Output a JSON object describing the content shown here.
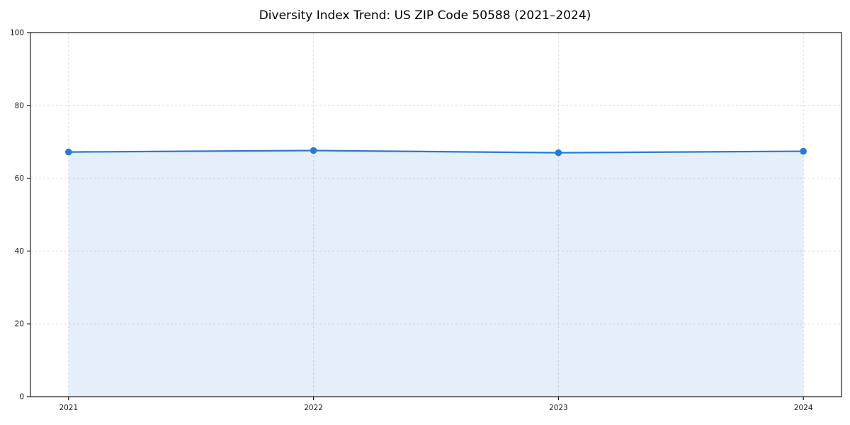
{
  "chart_data": {
    "type": "area",
    "title": "Diversity Index Trend: US ZIP Code 50588 (2021–2024)",
    "x": [
      2021,
      2022,
      2023,
      2024
    ],
    "x_tick_labels": [
      "2021",
      "2022",
      "2023",
      "2024"
    ],
    "series": [
      {
        "name": "Diversity Index",
        "values": [
          67.2,
          67.6,
          67.0,
          67.4
        ]
      }
    ],
    "xlabel": "",
    "ylabel": "",
    "ylim": [
      0,
      100
    ],
    "yticks": [
      0,
      20,
      40,
      60,
      80,
      100
    ],
    "grid": true,
    "grid_style": "dashed",
    "legend": false,
    "colors": {
      "line": "#2979d9",
      "marker": "#2979d9",
      "fill": "rgba(41, 121, 217, 0.12)",
      "grid": "#dcdcdc",
      "axis_border": "#1a1a1a",
      "tick_label": "#1a1a1a",
      "background": "#ffffff"
    }
  }
}
